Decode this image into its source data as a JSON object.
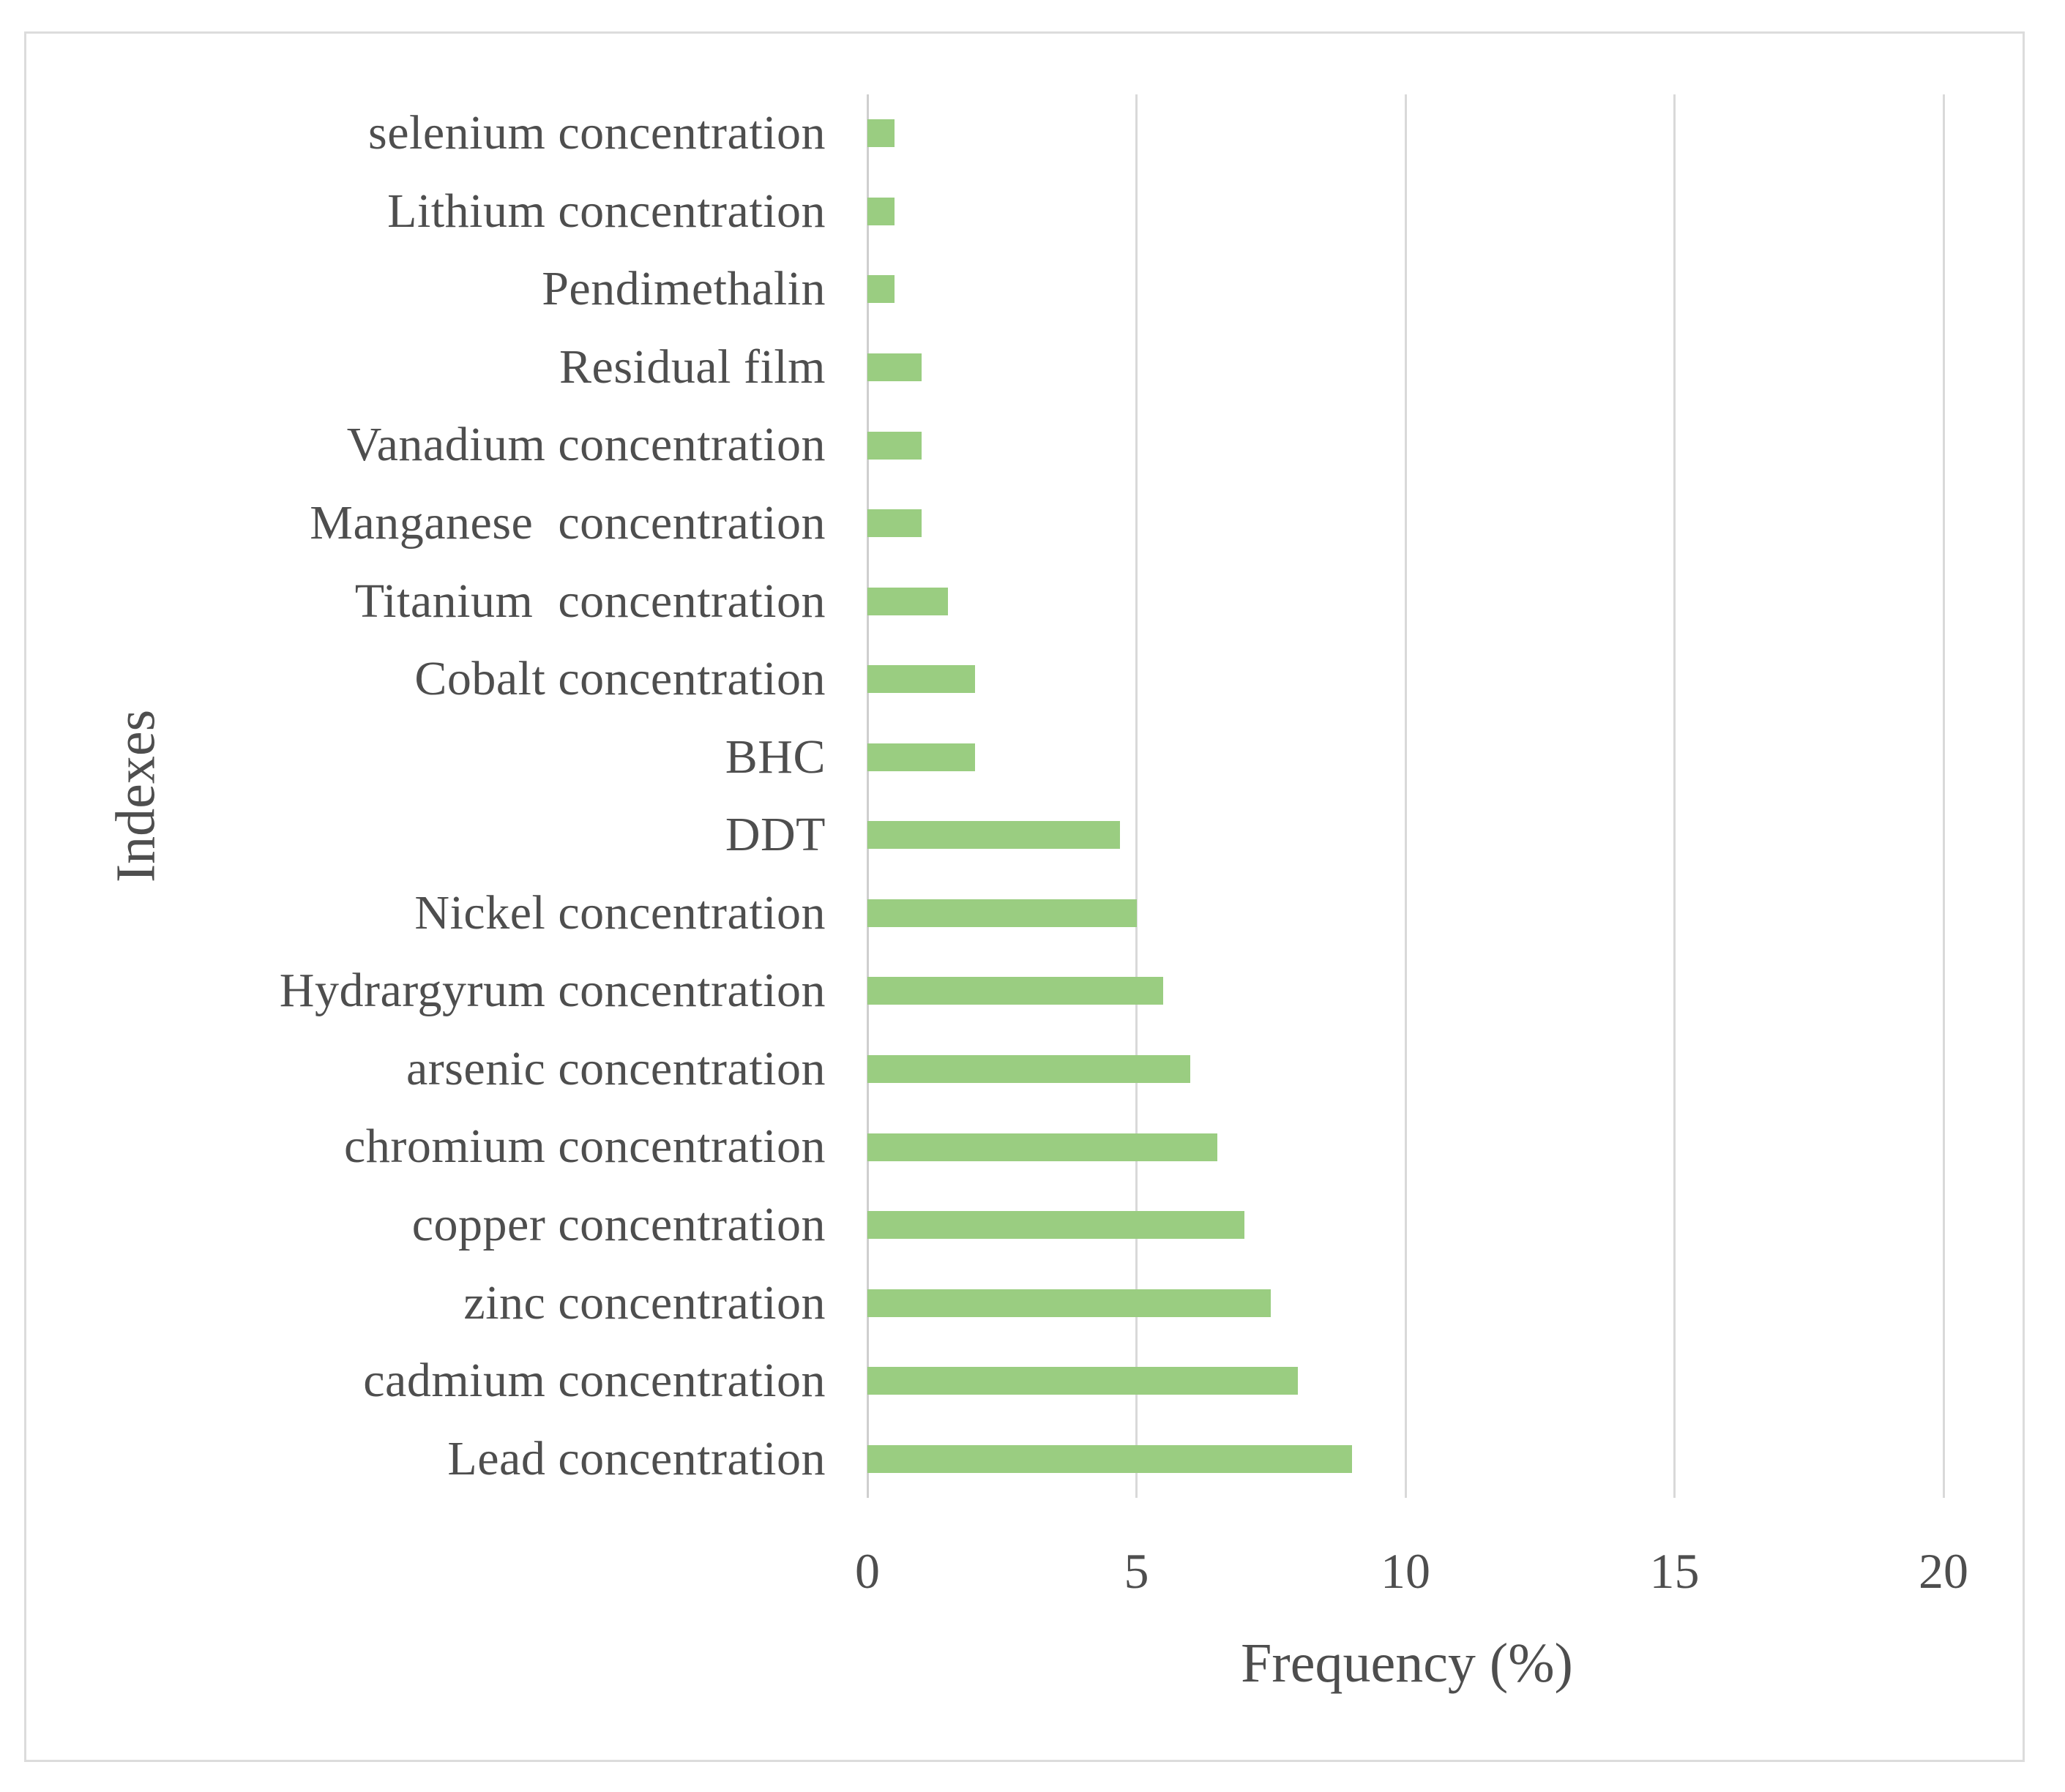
{
  "figure": {
    "background_color": "#ffffff",
    "frame_border_color": "#dcdcdc",
    "text_color": "#4e4e4e",
    "gridline_color": "#d9d9d9"
  },
  "chart_data": {
    "type": "bar",
    "orientation": "horizontal",
    "title": "",
    "xlabel": "Frequency (%)",
    "ylabel": "Indexes",
    "xlim": [
      0,
      20
    ],
    "xticks": [
      0,
      5,
      10,
      15,
      20
    ],
    "grid": "vertical-gridlines-on",
    "legend": "none",
    "bar_color": "#9acd81",
    "categories_order": "top-to-bottom",
    "categories": [
      "selenium concentration",
      "Lithium concentration",
      "Pendimethalin",
      "Residual film",
      "Vanadium concentration",
      "Manganese  concentration",
      "Titanium  concentration",
      "Cobalt concentration",
      "BHC",
      "DDT",
      "Nickel concentration",
      "Hydrargyrum concentration",
      "arsenic concentration",
      "chromium concentration",
      "copper concentration",
      "zinc concentration",
      "cadmium concentration",
      "Lead concentration"
    ],
    "values": [
      0.5,
      0.5,
      0.5,
      1,
      1,
      1,
      1.5,
      2,
      2,
      4.7,
      5,
      5.5,
      6,
      6.5,
      7,
      7.5,
      8,
      9
    ]
  }
}
